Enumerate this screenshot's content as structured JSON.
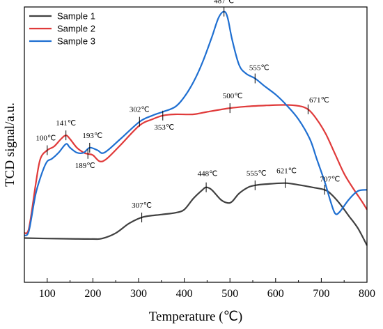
{
  "chart_data": {
    "type": "line",
    "xlabel": "Temperature (℃)",
    "ylabel": "TCD signal/a.u.",
    "xlim": [
      50,
      800
    ],
    "ylim": [
      0,
      100
    ],
    "xticks": [
      100,
      200,
      300,
      400,
      500,
      600,
      700,
      800
    ],
    "xtick_labels": [
      "100",
      "200",
      "300",
      "400",
      "500",
      "600",
      "700",
      "800"
    ],
    "legend_position": "top-left",
    "grid": false,
    "series": [
      {
        "name": "Sample 1",
        "color": "#404040",
        "points": [
          [
            50,
            10
          ],
          [
            100,
            9.8
          ],
          [
            150,
            9.7
          ],
          [
            200,
            9.6
          ],
          [
            220,
            9.8
          ],
          [
            250,
            12
          ],
          [
            280,
            16
          ],
          [
            310,
            18.5
          ],
          [
            350,
            19.5
          ],
          [
            380,
            20.2
          ],
          [
            400,
            21.5
          ],
          [
            420,
            26
          ],
          [
            440,
            29.5
          ],
          [
            448,
            30.5
          ],
          [
            460,
            29.5
          ],
          [
            480,
            25.5
          ],
          [
            495,
            24.2
          ],
          [
            505,
            24.8
          ],
          [
            520,
            28
          ],
          [
            540,
            30.5
          ],
          [
            555,
            31.3
          ],
          [
            580,
            31.8
          ],
          [
            621,
            32.2
          ],
          [
            650,
            31.5
          ],
          [
            680,
            30.5
          ],
          [
            707,
            29.5
          ],
          [
            720,
            28
          ],
          [
            740,
            24
          ],
          [
            760,
            19
          ],
          [
            780,
            14
          ],
          [
            800,
            7
          ]
        ]
      },
      {
        "name": "Sample 2",
        "color": "#e03a3a",
        "points": [
          [
            50,
            12
          ],
          [
            60,
            14
          ],
          [
            75,
            32
          ],
          [
            85,
            42
          ],
          [
            100,
            45.5
          ],
          [
            115,
            47
          ],
          [
            130,
            50
          ],
          [
            141,
            51.5
          ],
          [
            150,
            50
          ],
          [
            165,
            46.5
          ],
          [
            180,
            44.5
          ],
          [
            189,
            44
          ],
          [
            200,
            43.5
          ],
          [
            215,
            41
          ],
          [
            230,
            42
          ],
          [
            260,
            47.5
          ],
          [
            302,
            55.5
          ],
          [
            330,
            58
          ],
          [
            353,
            59.5
          ],
          [
            380,
            60
          ],
          [
            420,
            60
          ],
          [
            450,
            61
          ],
          [
            500,
            62.5
          ],
          [
            540,
            63.2
          ],
          [
            580,
            63.6
          ],
          [
            620,
            63.8
          ],
          [
            650,
            63.4
          ],
          [
            671,
            62
          ],
          [
            690,
            58
          ],
          [
            710,
            52
          ],
          [
            730,
            44
          ],
          [
            750,
            36
          ],
          [
            770,
            30
          ],
          [
            790,
            24.5
          ],
          [
            800,
            21.5
          ]
        ]
      },
      {
        "name": "Sample 3",
        "color": "#1f6fd1",
        "points": [
          [
            50,
            11
          ],
          [
            60,
            13
          ],
          [
            75,
            28
          ],
          [
            90,
            37
          ],
          [
            100,
            41
          ],
          [
            110,
            42
          ],
          [
            125,
            44.5
          ],
          [
            141,
            48
          ],
          [
            150,
            46.5
          ],
          [
            165,
            44.5
          ],
          [
            180,
            44.5
          ],
          [
            193,
            46.5
          ],
          [
            210,
            45.5
          ],
          [
            225,
            44.5
          ],
          [
            260,
            50
          ],
          [
            302,
            57
          ],
          [
            330,
            59.5
          ],
          [
            353,
            61
          ],
          [
            380,
            63
          ],
          [
            400,
            67
          ],
          [
            420,
            73
          ],
          [
            440,
            81
          ],
          [
            460,
            91
          ],
          [
            475,
            99
          ],
          [
            487,
            101.5
          ],
          [
            495,
            99
          ],
          [
            505,
            90
          ],
          [
            520,
            80
          ],
          [
            535,
            76.5
          ],
          [
            555,
            74.5
          ],
          [
            575,
            71.5
          ],
          [
            600,
            68
          ],
          [
            625,
            63.5
          ],
          [
            650,
            58
          ],
          [
            675,
            50
          ],
          [
            690,
            42
          ],
          [
            707,
            33
          ],
          [
            720,
            25
          ],
          [
            730,
            20
          ],
          [
            740,
            20.5
          ],
          [
            760,
            25.5
          ],
          [
            780,
            29
          ],
          [
            800,
            29.5
          ]
        ]
      }
    ],
    "annotations": [
      {
        "label": "100℃",
        "series": 1,
        "x": 100,
        "y": 45.5
      },
      {
        "label": "141℃",
        "series": 1,
        "x": 141,
        "y": 51.5
      },
      {
        "label": "189℃",
        "series": 1,
        "x": 189,
        "y": 44
      },
      {
        "label": "193℃",
        "series": 2,
        "x": 193,
        "y": 46.5
      },
      {
        "label": "302℃",
        "series": 2,
        "x": 302,
        "y": 57
      },
      {
        "label": "353℃",
        "series": 1,
        "x": 353,
        "y": 59.5
      },
      {
        "label": "500℃",
        "series": 1,
        "x": 500,
        "y": 62.5
      },
      {
        "label": "671℃",
        "series": 1,
        "x": 671,
        "y": 62
      },
      {
        "label": "487℃",
        "series": 2,
        "x": 487,
        "y": 101.5
      },
      {
        "label": "555℃",
        "series": 2,
        "x": 555,
        "y": 74.5
      },
      {
        "label": "307℃",
        "series": 0,
        "x": 307,
        "y": 18.3
      },
      {
        "label": "448℃",
        "series": 0,
        "x": 448,
        "y": 30.5
      },
      {
        "label": "555℃",
        "series": 0,
        "x": 555,
        "y": 31.3
      },
      {
        "label": "621℃",
        "series": 0,
        "x": 621,
        "y": 32.2
      },
      {
        "label": "707℃",
        "series": 0,
        "x": 707,
        "y": 29.5
      }
    ]
  }
}
